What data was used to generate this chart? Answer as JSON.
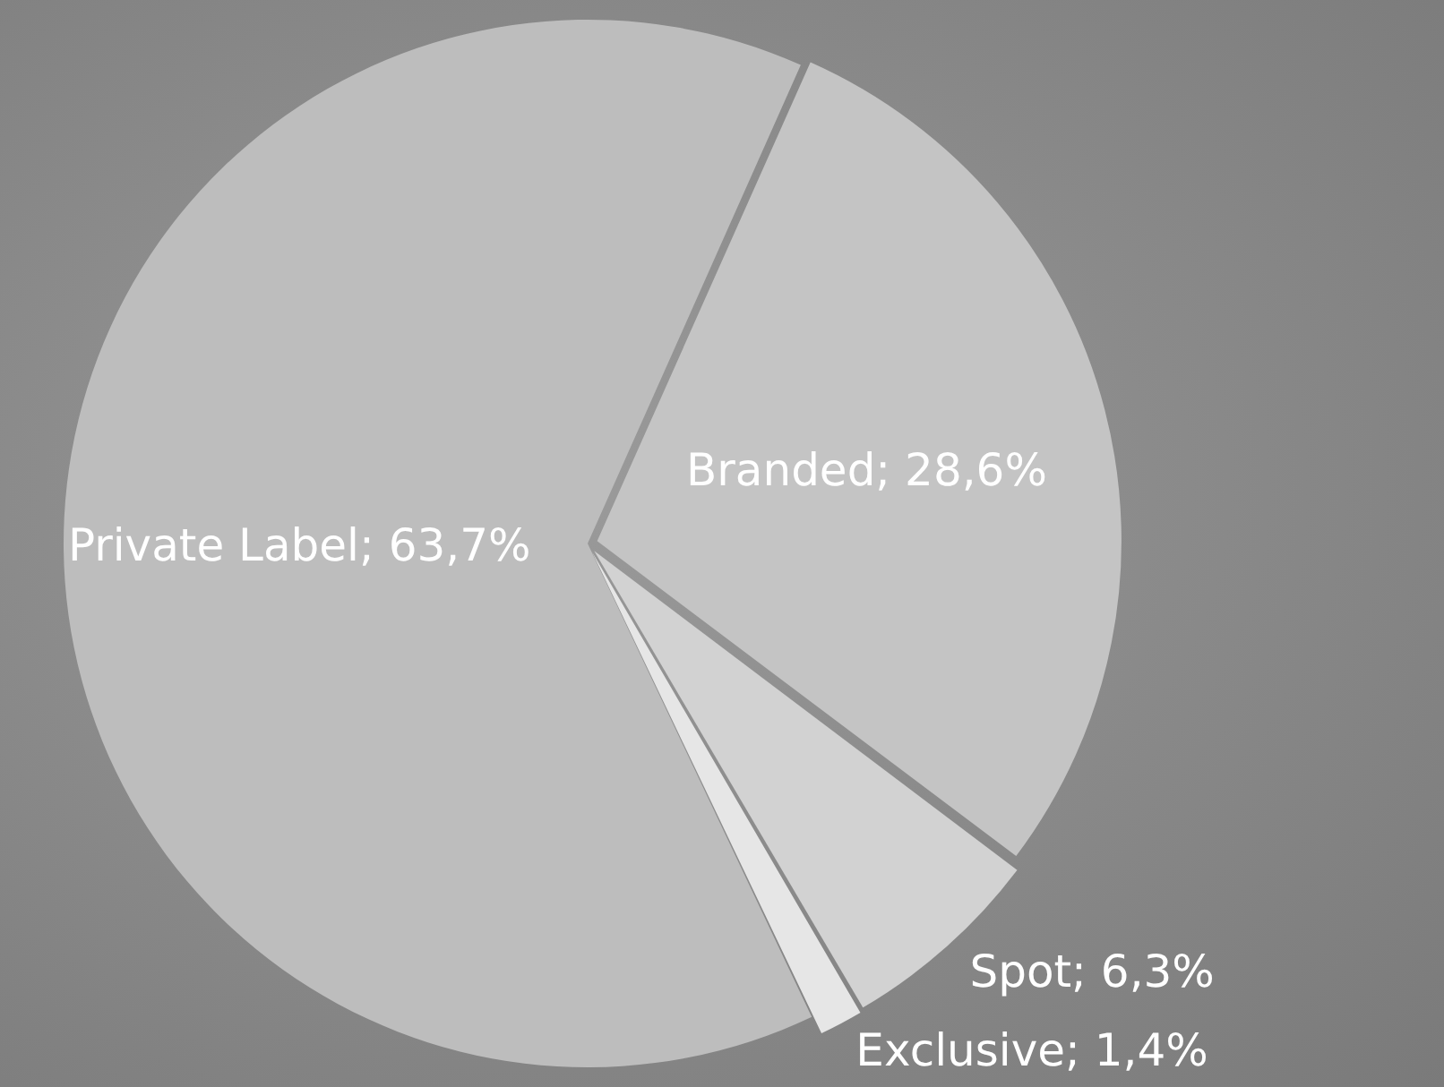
{
  "chart_data": {
    "type": "pie",
    "categories": [
      "Branded",
      "Spot",
      "Exclusive",
      "Private Label"
    ],
    "values": [
      28.6,
      6.3,
      1.4,
      63.7
    ],
    "value_labels": [
      "28,6%",
      "6,3%",
      "1,4%",
      "63,7%"
    ],
    "colors": [
      "#c4c4c4",
      "#d2d2d2",
      "#e6e6e6",
      "#bdbdbd"
    ],
    "legend": false
  }
}
